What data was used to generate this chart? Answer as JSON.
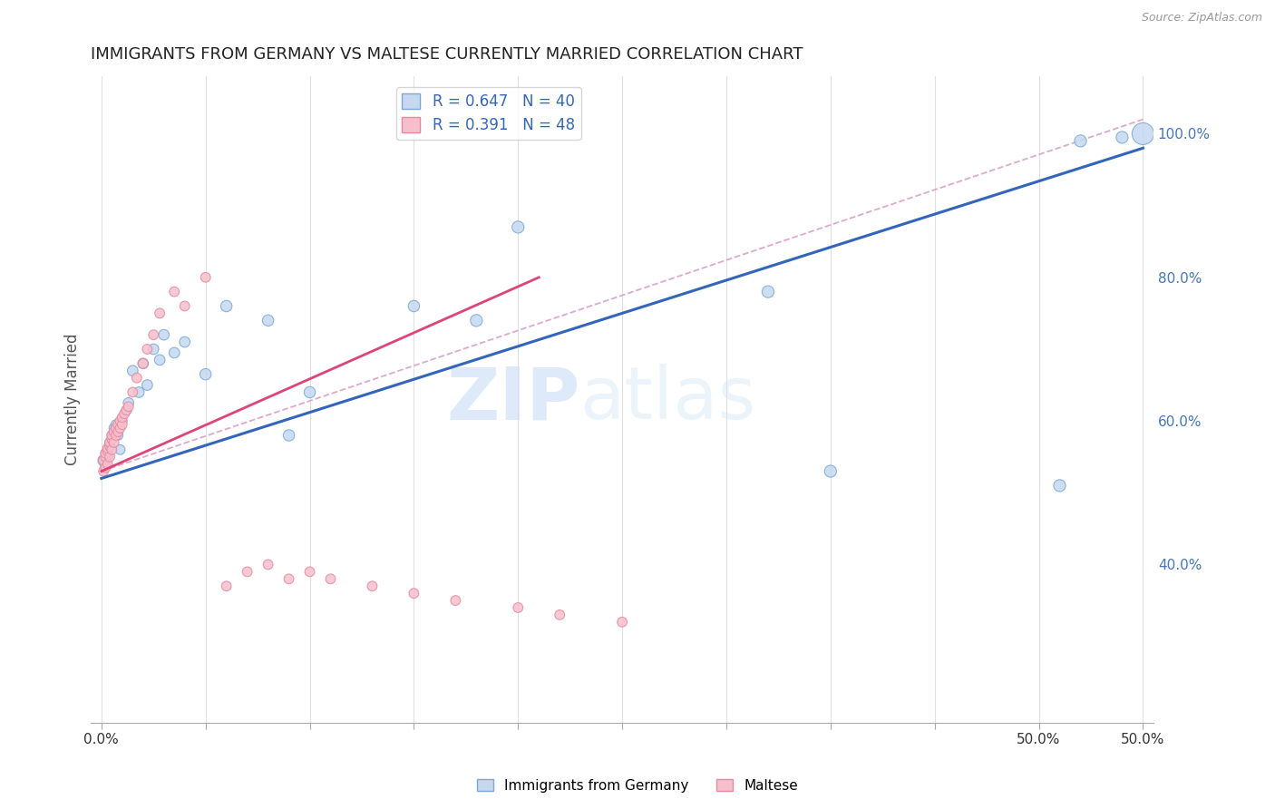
{
  "title": "IMMIGRANTS FROM GERMANY VS MALTESE CURRENTLY MARRIED CORRELATION CHART",
  "source": "Source: ZipAtlas.com",
  "ylabel": "Currently Married",
  "xlim": [
    -0.005,
    0.505
  ],
  "ylim": [
    0.18,
    1.08
  ],
  "xticks": [
    0.0,
    0.05,
    0.1,
    0.15,
    0.2,
    0.25,
    0.3,
    0.35,
    0.4,
    0.45,
    0.5
  ],
  "xticklabels_show": {
    "0.0": "0.0%",
    "0.5": "50.0%"
  },
  "yticks_right": [
    0.4,
    0.6,
    0.8,
    1.0
  ],
  "yticklabels_right": [
    "40.0%",
    "60.0%",
    "80.0%",
    "100.0%"
  ],
  "background_color": "#ffffff",
  "watermark": "ZIPatlas",
  "legend_r_blue": "R = 0.647",
  "legend_n_blue": "N = 40",
  "legend_r_pink": "R = 0.391",
  "legend_n_pink": "N = 48",
  "blue_scatter": {
    "x": [
      0.001,
      0.002,
      0.002,
      0.003,
      0.003,
      0.004,
      0.004,
      0.005,
      0.005,
      0.006,
      0.006,
      0.007,
      0.008,
      0.009,
      0.01,
      0.012,
      0.013,
      0.015,
      0.018,
      0.02,
      0.022,
      0.025,
      0.028,
      0.03,
      0.035,
      0.04,
      0.05,
      0.06,
      0.08,
      0.09,
      0.1,
      0.15,
      0.18,
      0.2,
      0.32,
      0.35,
      0.46,
      0.47,
      0.49,
      0.5
    ],
    "y": [
      0.545,
      0.54,
      0.555,
      0.55,
      0.56,
      0.565,
      0.57,
      0.575,
      0.58,
      0.585,
      0.59,
      0.595,
      0.58,
      0.56,
      0.6,
      0.615,
      0.625,
      0.67,
      0.64,
      0.68,
      0.65,
      0.7,
      0.685,
      0.72,
      0.695,
      0.71,
      0.665,
      0.76,
      0.74,
      0.58,
      0.64,
      0.76,
      0.74,
      0.87,
      0.78,
      0.53,
      0.51,
      0.99,
      0.995,
      1.0
    ],
    "sizes": [
      80,
      70,
      60,
      60,
      60,
      60,
      60,
      60,
      60,
      60,
      60,
      60,
      60,
      60,
      60,
      60,
      70,
      70,
      70,
      70,
      70,
      70,
      70,
      70,
      70,
      70,
      80,
      80,
      80,
      80,
      80,
      80,
      90,
      90,
      90,
      90,
      90,
      90,
      90,
      300
    ]
  },
  "pink_scatter": {
    "x": [
      0.001,
      0.001,
      0.002,
      0.002,
      0.002,
      0.003,
      0.003,
      0.003,
      0.004,
      0.004,
      0.004,
      0.005,
      0.005,
      0.005,
      0.006,
      0.006,
      0.007,
      0.007,
      0.008,
      0.008,
      0.009,
      0.009,
      0.01,
      0.01,
      0.011,
      0.012,
      0.013,
      0.015,
      0.017,
      0.02,
      0.022,
      0.025,
      0.028,
      0.035,
      0.04,
      0.05,
      0.06,
      0.07,
      0.08,
      0.09,
      0.1,
      0.11,
      0.13,
      0.15,
      0.17,
      0.2,
      0.22,
      0.25
    ],
    "y": [
      0.53,
      0.545,
      0.535,
      0.55,
      0.555,
      0.54,
      0.558,
      0.562,
      0.55,
      0.565,
      0.57,
      0.56,
      0.575,
      0.58,
      0.57,
      0.585,
      0.58,
      0.59,
      0.585,
      0.595,
      0.59,
      0.6,
      0.595,
      0.605,
      0.61,
      0.615,
      0.62,
      0.64,
      0.66,
      0.68,
      0.7,
      0.72,
      0.75,
      0.78,
      0.76,
      0.8,
      0.37,
      0.39,
      0.4,
      0.38,
      0.39,
      0.38,
      0.37,
      0.36,
      0.35,
      0.34,
      0.33,
      0.32
    ],
    "sizes": [
      60,
      60,
      60,
      60,
      60,
      60,
      60,
      60,
      60,
      60,
      60,
      60,
      60,
      60,
      60,
      60,
      60,
      60,
      60,
      60,
      60,
      60,
      60,
      60,
      60,
      60,
      60,
      60,
      60,
      60,
      60,
      60,
      60,
      60,
      60,
      60,
      60,
      60,
      60,
      60,
      60,
      60,
      60,
      60,
      60,
      60,
      60,
      60
    ]
  },
  "blue_line_x": [
    0.0,
    0.5
  ],
  "blue_line_y": [
    0.52,
    0.98
  ],
  "blue_line_color": "#3366bb",
  "blue_line_lw": 2.2,
  "pink_line_x": [
    0.0,
    0.21
  ],
  "pink_line_y": [
    0.53,
    0.8
  ],
  "pink_line_color": "#dd4477",
  "pink_line_lw": 2.0,
  "dashed_line_x": [
    0.0,
    0.5
  ],
  "dashed_line_y": [
    0.53,
    1.02
  ],
  "dashed_line_color": "#ddaacc",
  "dashed_line_lw": 1.3
}
